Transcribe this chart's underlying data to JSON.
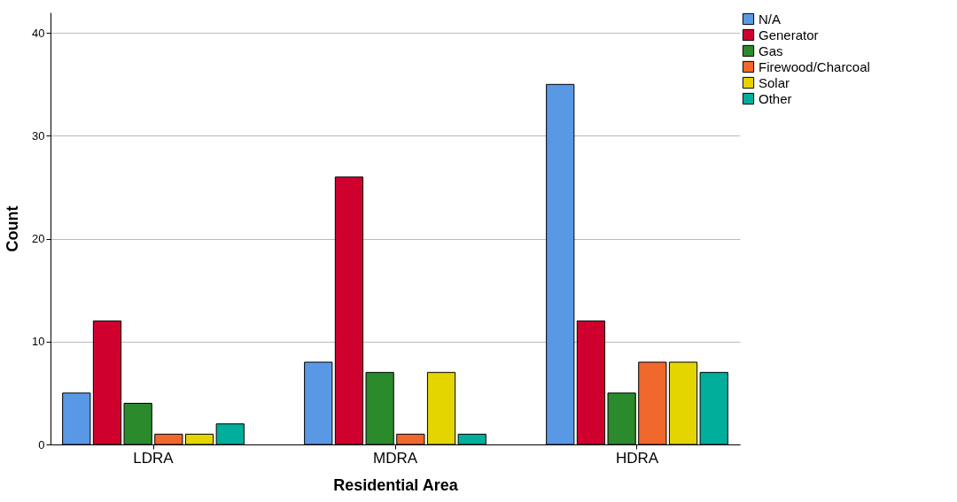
{
  "chart_data": {
    "type": "bar",
    "xlabel": "Residential Area",
    "ylabel": "Count",
    "categories": [
      "LDRA",
      "MDRA",
      "HDRA"
    ],
    "series": [
      {
        "name": "N/A",
        "color": "#5898e4",
        "values": [
          5,
          8,
          35
        ]
      },
      {
        "name": "Generator",
        "color": "#d0002e",
        "values": [
          12,
          26,
          12
        ]
      },
      {
        "name": "Gas",
        "color": "#2a8a2c",
        "values": [
          4,
          7,
          5
        ]
      },
      {
        "name": "Firewood/Charcoal",
        "color": "#f0682c",
        "values": [
          1,
          1,
          8
        ]
      },
      {
        "name": "Solar",
        "color": "#e4d400",
        "values": [
          1,
          7,
          8
        ]
      },
      {
        "name": "Other",
        "color": "#00ae9c",
        "values": [
          2,
          1,
          7
        ]
      }
    ],
    "ylim": [
      0,
      42
    ],
    "yticks": [
      0,
      10,
      20,
      30,
      40
    ],
    "grid": "y",
    "legend": "top right"
  }
}
